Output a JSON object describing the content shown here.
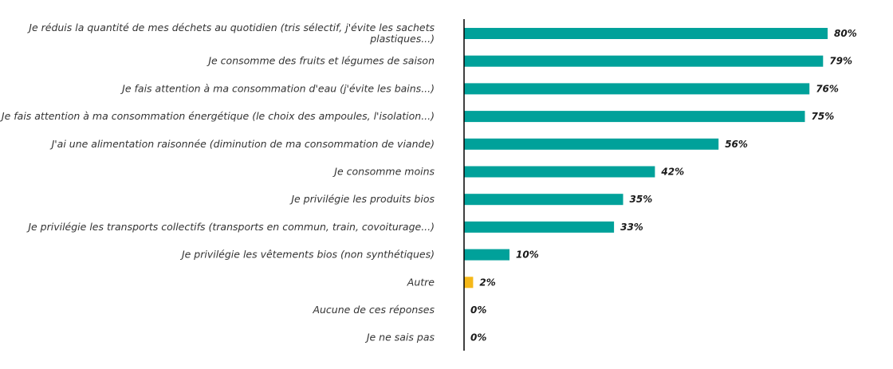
{
  "chart_data": {
    "type": "bar",
    "orientation": "horizontal",
    "categories": [
      [
        "Je réduis la quantité de mes déchets au quotidien (tris sélectif, j'évite les sachets",
        "plastiques...)"
      ],
      [
        "Je consomme des fruits et légumes de saison"
      ],
      [
        "Je fais attention à ma consommation d'eau (j'évite les bains...)"
      ],
      [
        "Je fais attention à ma consommation énergétique (le choix des ampoules, l'isolation...)"
      ],
      [
        "J'ai une alimentation raisonnée (diminution de ma consommation de viande)"
      ],
      [
        "Je consomme moins"
      ],
      [
        "Je privilégie les produits bios"
      ],
      [
        "Je privilégie les transports collectifs (transports en commun, train, covoiturage...)"
      ],
      [
        "Je privilégie les vêtements bios (non synthétiques)"
      ],
      [
        "Autre"
      ],
      [
        "Aucune de ces réponses"
      ],
      [
        "Je ne sais pas"
      ]
    ],
    "values": [
      80,
      79,
      76,
      75,
      56,
      42,
      35,
      33,
      10,
      2,
      0,
      0
    ],
    "value_labels": [
      "80%",
      "79%",
      "76%",
      "75%",
      "56%",
      "42%",
      "35%",
      "33%",
      "10%",
      "2%",
      "0%",
      "0%"
    ],
    "colors": [
      "#00A19A",
      "#00A19A",
      "#00A19A",
      "#00A19A",
      "#00A19A",
      "#00A19A",
      "#00A19A",
      "#00A19A",
      "#00A19A",
      "#F5B819",
      "#00A19A",
      "#00A19A"
    ],
    "xlim": [
      0,
      80
    ],
    "grid": false,
    "legend": "none",
    "title": "",
    "xlabel": "",
    "ylabel": ""
  }
}
